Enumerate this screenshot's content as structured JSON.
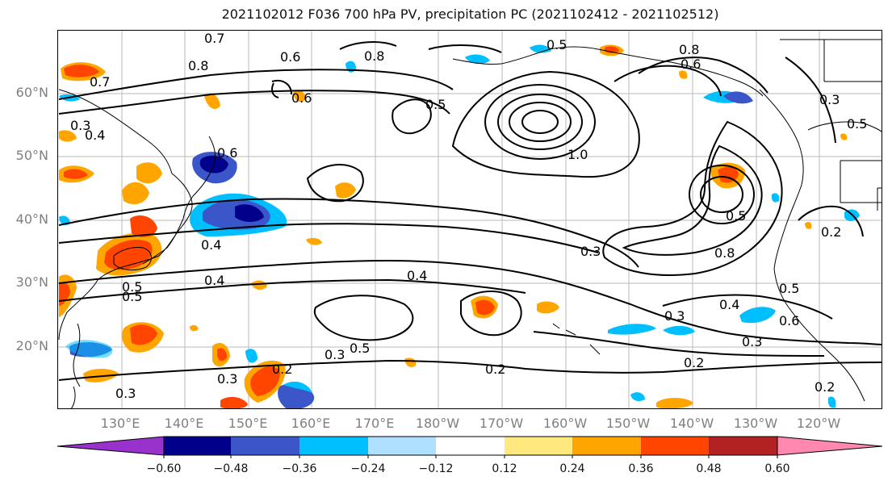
{
  "title": "2021102012 F036 700 hPa PV, precipitation PC (2021102412 - 2021102512)",
  "lat_labels": [
    "60°N",
    "50°N",
    "40°N",
    "30°N",
    "20°N"
  ],
  "lon_labels": [
    "130°E",
    "140°E",
    "150°E",
    "160°E",
    "170°E",
    "180°W",
    "170°W",
    "160°W",
    "150°W",
    "140°W",
    "130°W",
    "120°W"
  ],
  "colorbar": {
    "ticks": [
      "−0.60",
      "−0.48",
      "−0.36",
      "−0.24",
      "−0.12",
      "0.12",
      "0.24",
      "0.36",
      "0.48",
      "0.60"
    ],
    "colors": [
      "#9932cc",
      "#00008b",
      "#3a56c8",
      "#00bfff",
      "#b0e0ff",
      "#ffffff",
      "#ffe97f",
      "#ffa500",
      "#ff4500",
      "#b22222",
      "#ff88b0"
    ]
  },
  "contour_labels": [
    "0.7",
    "0.6",
    "0.8",
    "0.8",
    "0.5",
    "0.5",
    "1.0",
    "0.7",
    "0.6",
    "0.4",
    "0.3",
    "0.4",
    "0.3",
    "0.4",
    "0.5",
    "0.3",
    "0.5",
    "0.2",
    "0.2",
    "0.3",
    "0.2",
    "0.2",
    "0.3",
    "0.8",
    "0.5",
    "0.6",
    "0.5",
    "0.4",
    "0.3",
    "0.2",
    "0.3",
    "0.8",
    "0.6",
    "0.5",
    "0.5",
    "0.6",
    "0.3",
    "0.4"
  ]
}
